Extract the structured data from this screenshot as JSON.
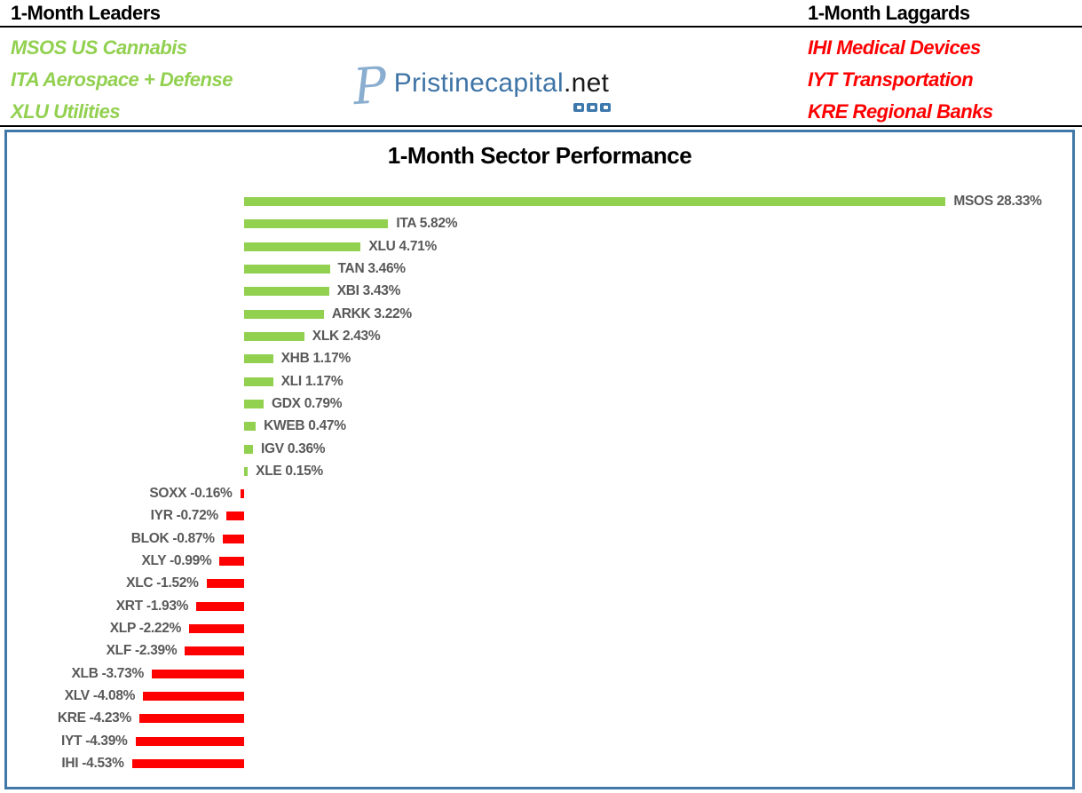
{
  "header": {
    "leaders": {
      "heading": "1-Month Leaders",
      "color": "#92D050",
      "items": [
        "MSOS US Cannabis",
        "ITA Aerospace + Defense",
        "XLU Utilities"
      ]
    },
    "laggards": {
      "heading": "1-Month Laggards",
      "color": "#FF0000",
      "items": [
        "IHI Medical Devices",
        "IYT Transportation",
        "KRE Regional Banks"
      ]
    },
    "logo": {
      "monogram": "P",
      "name": "Pristinecapital",
      "tld": ".net",
      "name_color": "#3E74A6",
      "social_icons": [
        "stream-icon",
        "discord-icon",
        "tv-icon"
      ]
    }
  },
  "chart_data": {
    "type": "bar",
    "orientation": "horizontal",
    "title": "1-Month Sector Performance",
    "value_suffix": "%",
    "positive_color": "#92D050",
    "negative_color": "#FF0000",
    "label_color": "#595959",
    "border_color": "#4178A8",
    "xlim": [
      -5,
      29
    ],
    "grid": false,
    "legend": false,
    "series": [
      {
        "ticker": "MSOS",
        "value": 28.33
      },
      {
        "ticker": "ITA",
        "value": 5.82
      },
      {
        "ticker": "XLU",
        "value": 4.71
      },
      {
        "ticker": "TAN",
        "value": 3.46
      },
      {
        "ticker": "XBI",
        "value": 3.43
      },
      {
        "ticker": "ARKK",
        "value": 3.22
      },
      {
        "ticker": "XLK",
        "value": 2.43
      },
      {
        "ticker": "XHB",
        "value": 1.17
      },
      {
        "ticker": "XLI",
        "value": 1.17
      },
      {
        "ticker": "GDX",
        "value": 0.79
      },
      {
        "ticker": "KWEB",
        "value": 0.47
      },
      {
        "ticker": "IGV",
        "value": 0.36
      },
      {
        "ticker": "XLE",
        "value": 0.15
      },
      {
        "ticker": "SOXX",
        "value": -0.16
      },
      {
        "ticker": "IYR",
        "value": -0.72
      },
      {
        "ticker": "BLOK",
        "value": -0.87
      },
      {
        "ticker": "XLY",
        "value": -0.99
      },
      {
        "ticker": "XLC",
        "value": -1.52
      },
      {
        "ticker": "XRT",
        "value": -1.93
      },
      {
        "ticker": "XLP",
        "value": -2.22
      },
      {
        "ticker": "XLF",
        "value": -2.39
      },
      {
        "ticker": "XLB",
        "value": -3.73
      },
      {
        "ticker": "XLV",
        "value": -4.08
      },
      {
        "ticker": "KRE",
        "value": -4.23
      },
      {
        "ticker": "IYT",
        "value": -4.39
      },
      {
        "ticker": "IHI",
        "value": -4.53
      }
    ]
  }
}
